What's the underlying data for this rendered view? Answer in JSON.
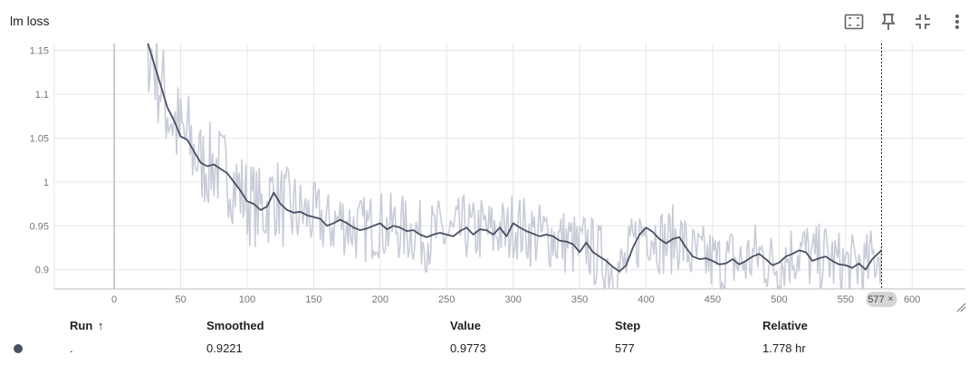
{
  "header": {
    "title": "lm loss"
  },
  "toolbar": {
    "icons": [
      "fit-domain-icon",
      "pin-icon",
      "collapse-icon",
      "more-vert-icon"
    ]
  },
  "chart_data": {
    "type": "line",
    "title": "lm loss",
    "xlabel": "",
    "ylabel": "",
    "xlim": [
      -45,
      640
    ],
    "ylim": [
      0.878,
      1.158
    ],
    "x_ticks": [
      0,
      50,
      100,
      150,
      200,
      250,
      300,
      350,
      400,
      450,
      500,
      550,
      600
    ],
    "x_tick_labels": [
      "0",
      "50",
      "100",
      "150",
      "200",
      "250",
      "300",
      "350",
      "400",
      "450",
      "500",
      "550",
      "600"
    ],
    "y_ticks": [
      0.9,
      0.95,
      1,
      1.05,
      1.1,
      1.15
    ],
    "y_tick_labels": [
      "0.9",
      "0.95",
      "1",
      "1.05",
      "1.1",
      "1.15"
    ],
    "grid": true,
    "cursor_step": 577,
    "cursor_label": "577",
    "colors": {
      "raw": "#c8ccd8",
      "smoothed": "#4a4f63",
      "grid": "#e6e6e6",
      "axis": "#9e9e9e"
    },
    "series": [
      {
        "name": "Smoothed",
        "x": [
          22,
          25,
          28,
          32,
          36,
          40,
          45,
          50,
          55,
          60,
          65,
          70,
          75,
          80,
          85,
          90,
          95,
          100,
          105,
          110,
          115,
          120,
          125,
          130,
          135,
          140,
          145,
          150,
          155,
          160,
          165,
          170,
          175,
          180,
          185,
          190,
          195,
          200,
          205,
          210,
          215,
          220,
          225,
          230,
          235,
          240,
          245,
          250,
          255,
          260,
          265,
          270,
          275,
          280,
          285,
          290,
          295,
          300,
          305,
          310,
          315,
          320,
          325,
          330,
          335,
          340,
          345,
          350,
          355,
          360,
          365,
          370,
          375,
          380,
          385,
          390,
          395,
          400,
          405,
          410,
          415,
          420,
          425,
          430,
          435,
          440,
          445,
          450,
          455,
          460,
          465,
          470,
          475,
          480,
          485,
          490,
          495,
          500,
          505,
          510,
          515,
          520,
          525,
          530,
          535,
          540,
          545,
          550,
          555,
          560,
          565,
          570,
          577
        ],
        "y": [
          1.17,
          1.16,
          1.145,
          1.125,
          1.105,
          1.085,
          1.07,
          1.052,
          1.048,
          1.035,
          1.022,
          1.018,
          1.02,
          1.015,
          1.01,
          1.0,
          0.99,
          0.978,
          0.975,
          0.968,
          0.972,
          0.988,
          0.975,
          0.968,
          0.965,
          0.966,
          0.962,
          0.96,
          0.958,
          0.95,
          0.953,
          0.957,
          0.953,
          0.948,
          0.945,
          0.947,
          0.95,
          0.953,
          0.946,
          0.95,
          0.948,
          0.944,
          0.945,
          0.94,
          0.937,
          0.94,
          0.942,
          0.94,
          0.938,
          0.944,
          0.948,
          0.94,
          0.946,
          0.945,
          0.94,
          0.948,
          0.938,
          0.953,
          0.948,
          0.944,
          0.941,
          0.938,
          0.94,
          0.938,
          0.933,
          0.932,
          0.929,
          0.92,
          0.931,
          0.92,
          0.915,
          0.91,
          0.903,
          0.898,
          0.905,
          0.925,
          0.94,
          0.948,
          0.943,
          0.935,
          0.93,
          0.935,
          0.937,
          0.925,
          0.915,
          0.912,
          0.913,
          0.91,
          0.906,
          0.907,
          0.912,
          0.906,
          0.91,
          0.915,
          0.918,
          0.912,
          0.905,
          0.908,
          0.915,
          0.918,
          0.922,
          0.92,
          0.91,
          0.913,
          0.915,
          0.91,
          0.906,
          0.905,
          0.902,
          0.907,
          0.9,
          0.912,
          0.9221
        ]
      }
    ]
  },
  "table": {
    "headers": {
      "run": "Run",
      "run_sort": "↑",
      "smoothed": "Smoothed",
      "value": "Value",
      "step": "Step",
      "relative": "Relative"
    },
    "rows": [
      {
        "run": ".",
        "smoothed": "0.9221",
        "value": "0.9773",
        "step": "577",
        "relative": "1.778 hr"
      }
    ]
  }
}
